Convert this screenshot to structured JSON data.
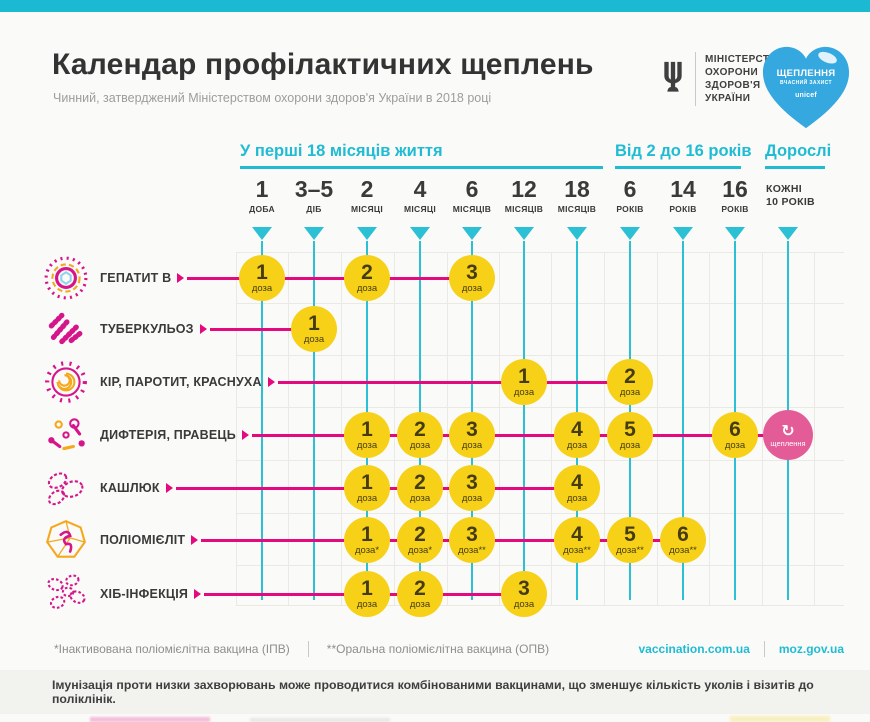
{
  "header": {
    "title": "Календар профілактичних щеплень",
    "subtitle": "Чинний, затверджений Міністерством охорони здоров'я України в 2018 році"
  },
  "logos": {
    "ministry": {
      "icon": "tryzub-icon",
      "lines": [
        "МІНІСТЕРСТВО",
        "ОХОРОНИ",
        "ЗДОРОВ'Я",
        "УКРАЇНИ"
      ]
    },
    "heart": {
      "icon": "heart-icon",
      "title": "ЩЕПЛЕННЯ",
      "subtitle": "ВЧАСНИЙ ЗАХИСТ",
      "brand": "unicef"
    }
  },
  "timeline": {
    "sections": [
      {
        "label": "У перші 18 місяців життя"
      },
      {
        "label": "Від 2 до 16 років"
      },
      {
        "label": "Дорослі"
      }
    ],
    "columns": [
      {
        "value": "1",
        "unit": "ДОБА"
      },
      {
        "value": "3–5",
        "unit": "ДІБ"
      },
      {
        "value": "2",
        "unit": "МІСЯЦІ"
      },
      {
        "value": "4",
        "unit": "МІСЯЦІ"
      },
      {
        "value": "6",
        "unit": "МІСЯЦІВ"
      },
      {
        "value": "12",
        "unit": "МІСЯЦІВ"
      },
      {
        "value": "18",
        "unit": "МІСЯЦІВ"
      },
      {
        "value": "6",
        "unit": "РОКІВ"
      },
      {
        "value": "14",
        "unit": "РОКІВ"
      },
      {
        "value": "16",
        "unit": "РОКІВ"
      }
    ],
    "adult": {
      "lines": [
        "КОЖНІ",
        "10 РОКІВ"
      ]
    }
  },
  "rows": [
    {
      "label": "ГЕПАТИТ В",
      "icon": "virus-hepatitis-icon",
      "doses": [
        {
          "col": 0,
          "num": "1",
          "label": "доза"
        },
        {
          "col": 2,
          "num": "2",
          "label": "доза"
        },
        {
          "col": 4,
          "num": "3",
          "label": "доза"
        }
      ]
    },
    {
      "label": "ТУБЕРКУЛЬОЗ",
      "icon": "bacteria-tuberculosis-icon",
      "doses": [
        {
          "col": 1,
          "num": "1",
          "label": "доза"
        }
      ]
    },
    {
      "label": "КІР, ПАРОТИТ, КРАСНУХА",
      "icon": "virus-measles-icon",
      "doses": [
        {
          "col": 5,
          "num": "1",
          "label": "доза"
        },
        {
          "col": 7,
          "num": "2",
          "label": "доза"
        }
      ]
    },
    {
      "label": "ДИФТЕРІЯ, ПРАВЕЦЬ",
      "icon": "bacteria-diphtheria-icon",
      "doses": [
        {
          "col": 2,
          "num": "1",
          "label": "доза"
        },
        {
          "col": 3,
          "num": "2",
          "label": "доза"
        },
        {
          "col": 4,
          "num": "3",
          "label": "доза"
        },
        {
          "col": 6,
          "num": "4",
          "label": "доза"
        },
        {
          "col": 7,
          "num": "5",
          "label": "доза"
        },
        {
          "col": 9,
          "num": "6",
          "label": "доза"
        }
      ],
      "booster": {
        "label": "щеплення",
        "icon": "repeat-icon",
        "symbol": "↻"
      }
    },
    {
      "label": "КАШЛЮК",
      "icon": "bacteria-pertussis-icon",
      "doses": [
        {
          "col": 2,
          "num": "1",
          "label": "доза"
        },
        {
          "col": 3,
          "num": "2",
          "label": "доза"
        },
        {
          "col": 4,
          "num": "3",
          "label": "доза"
        },
        {
          "col": 6,
          "num": "4",
          "label": "доза"
        }
      ]
    },
    {
      "label": "ПОЛІОМІЄЛІТ",
      "icon": "virus-polio-icon",
      "doses": [
        {
          "col": 2,
          "num": "1",
          "label": "доза*"
        },
        {
          "col": 3,
          "num": "2",
          "label": "доза*"
        },
        {
          "col": 4,
          "num": "3",
          "label": "доза**"
        },
        {
          "col": 6,
          "num": "4",
          "label": "доза**"
        },
        {
          "col": 7,
          "num": "5",
          "label": "доза**"
        },
        {
          "col": 8,
          "num": "6",
          "label": "доза**"
        }
      ]
    },
    {
      "label": "ХІБ-ІНФЕКЦІЯ",
      "icon": "bacteria-hib-icon",
      "doses": [
        {
          "col": 2,
          "num": "1",
          "label": "доза"
        },
        {
          "col": 3,
          "num": "2",
          "label": "доза"
        },
        {
          "col": 5,
          "num": "3",
          "label": "доза"
        }
      ]
    }
  ],
  "footnotes": [
    "*Інактивована поліомієлітна вакцина (ІПВ)",
    "**Оральна поліомієлітна вакцина (ОПВ)"
  ],
  "links": [
    "vaccination.com.ua",
    "moz.gov.ua"
  ],
  "bottom_note": "Імунізація проти низки захворювань може проводитися комбінованими вакцинами, що зменшує кількість уколів і візитів до поліклінік.",
  "colors": {
    "accent_cyan": "#1fbcd3",
    "magenta_line": "#e5097f",
    "dose_yellow": "#f6d118",
    "booster_pink": "#e45c97",
    "heart_blue": "#35a8e0"
  }
}
